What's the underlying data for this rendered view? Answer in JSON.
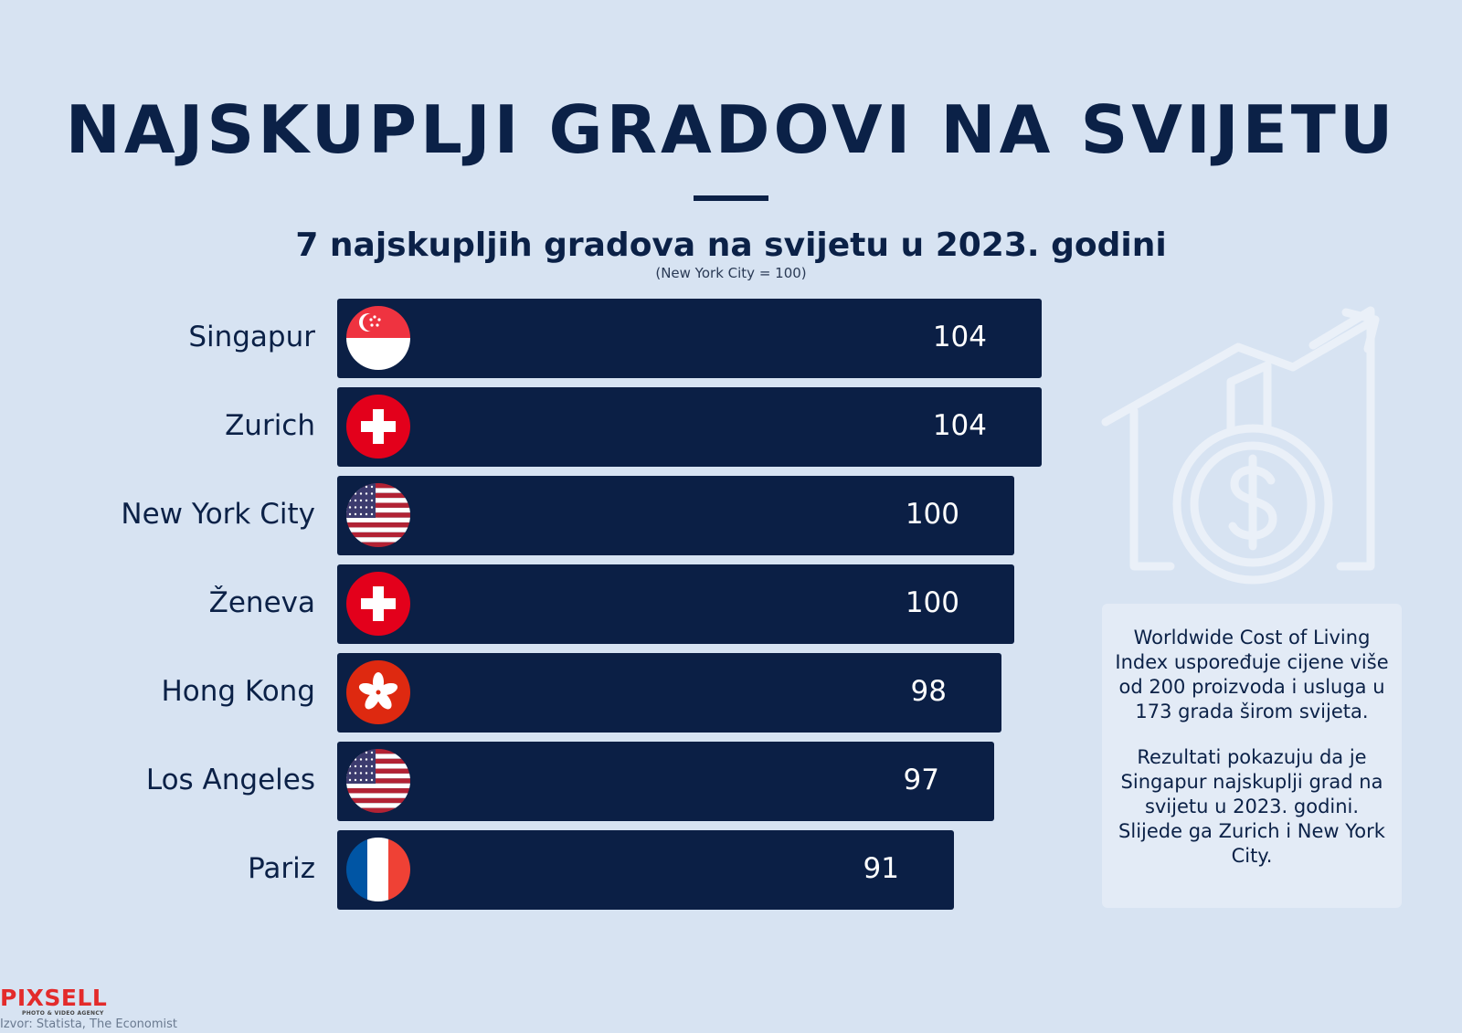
{
  "title": "NAJSKUPLJI GRADOVI NA SVIJETU",
  "subtitle": "7 najskupljih gradova na svijetu u 2023. godini",
  "note": "(New York City = 100)",
  "info": {
    "p1": "Worldwide Cost of Living Index uspoređuje cijene više od 200 proizvoda i usluga u 173 grada širom svijeta.",
    "p2": "Rezultati pokazuju da je Singapur najskuplji grad na svijetu u 2023. godini. Slijede ga Zurich i New York City."
  },
  "logo": {
    "text": "PIXSELL",
    "tagline": "PHOTO & VIDEO AGENCY"
  },
  "source": "Izvor: Statista, The Economist",
  "colors": {
    "background": "#d7e3f2",
    "bar": "#0b1f45",
    "title": "#0b2147",
    "logo": "#e32b2b"
  },
  "chart_data": {
    "type": "bar",
    "orientation": "horizontal",
    "categories": [
      "Singapur",
      "Zurich",
      "New York City",
      "Ženeva",
      "Hong Kong",
      "Los Angeles",
      "Pariz"
    ],
    "values": [
      104,
      104,
      100,
      100,
      98,
      97,
      91
    ],
    "labels": [
      "104",
      "104",
      "100",
      "100",
      "98",
      "97",
      "91"
    ],
    "flags": [
      "singapore-flag-icon",
      "switzerland-flag-icon",
      "usa-flag-icon",
      "switzerland-flag-icon",
      "hong-kong-flag-icon",
      "usa-flag-icon",
      "france-flag-icon"
    ],
    "title": "7 najskupljih gradova na svijetu u 2023. godini",
    "note": "(New York City = 100)"
  }
}
